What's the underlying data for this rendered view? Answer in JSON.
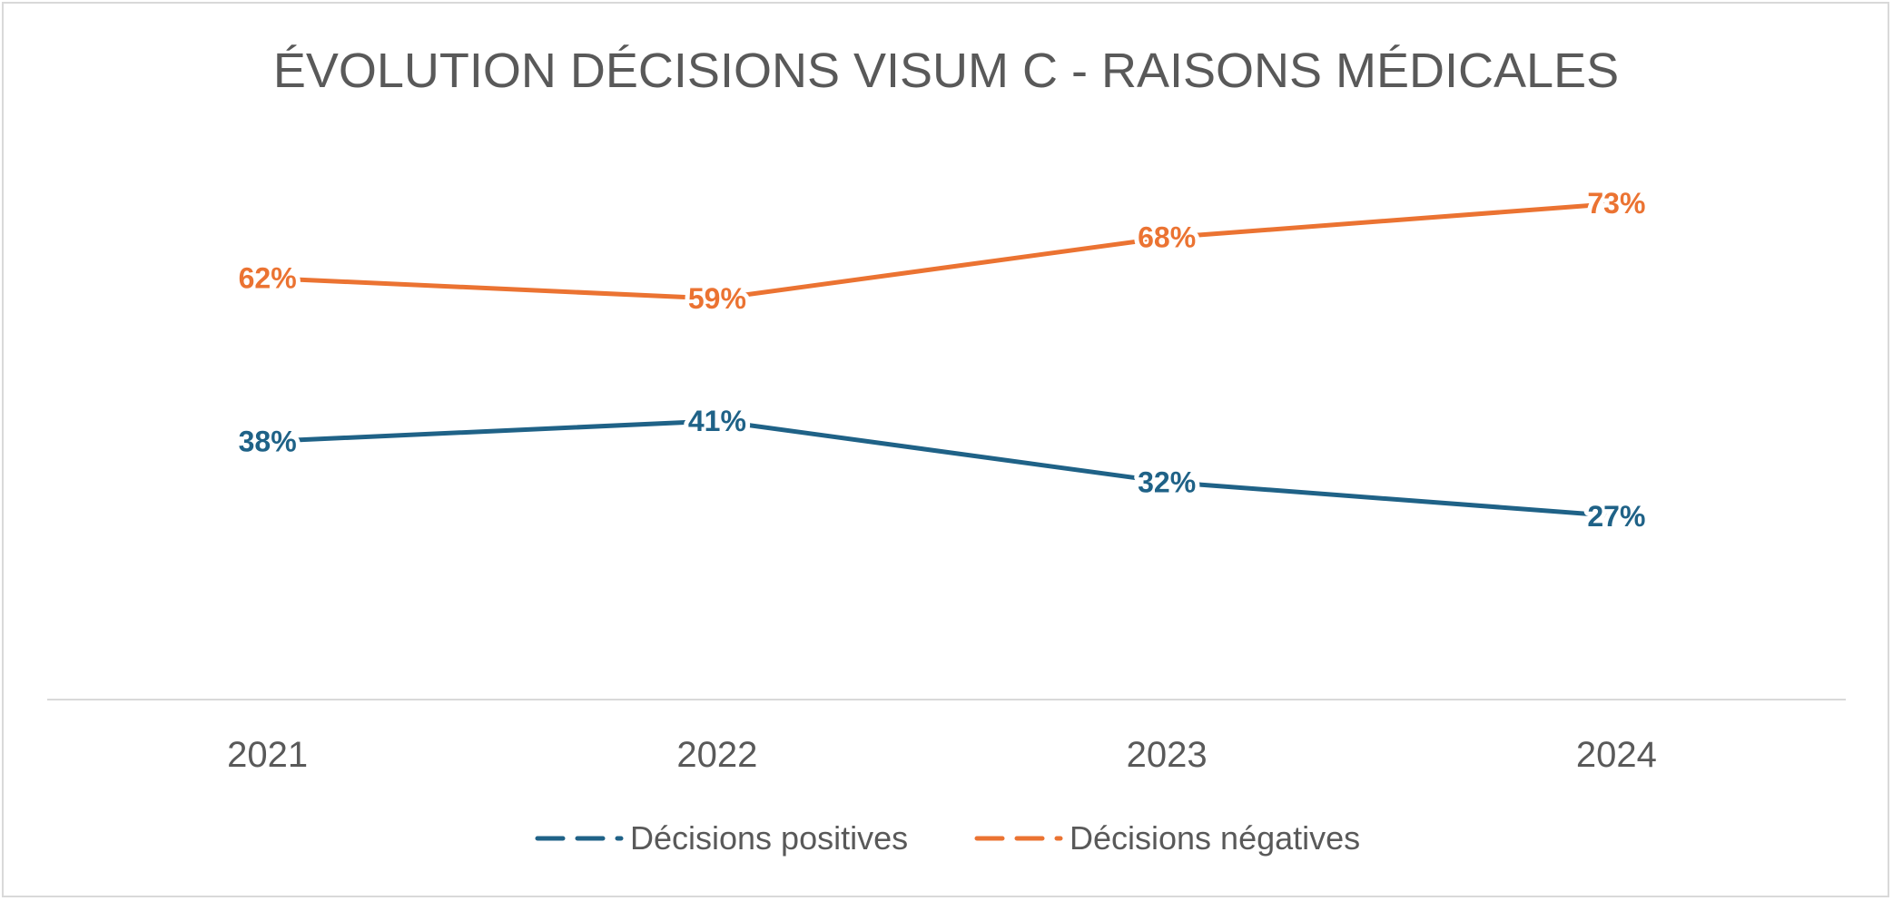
{
  "chart_data": {
    "type": "line",
    "title": "ÉVOLUTION DÉCISIONS VISUM C - RAISONS MÉDICALES",
    "categories": [
      "2021",
      "2022",
      "2023",
      "2024"
    ],
    "series": [
      {
        "name": "Décisions positives",
        "values": [
          38,
          41,
          32,
          27
        ],
        "labels": [
          "38%",
          "41%",
          "32%",
          "27%"
        ],
        "color": "#1f6287"
      },
      {
        "name": "Décisions négatives",
        "values": [
          62,
          59,
          68,
          73
        ],
        "labels": [
          "62%",
          "59%",
          "68%",
          "73%"
        ],
        "color": "#eb7332"
      }
    ],
    "ylim": [
      0,
      100
    ],
    "grid": false,
    "legend_position": "bottom",
    "axis_color": "#d9d9d9"
  }
}
